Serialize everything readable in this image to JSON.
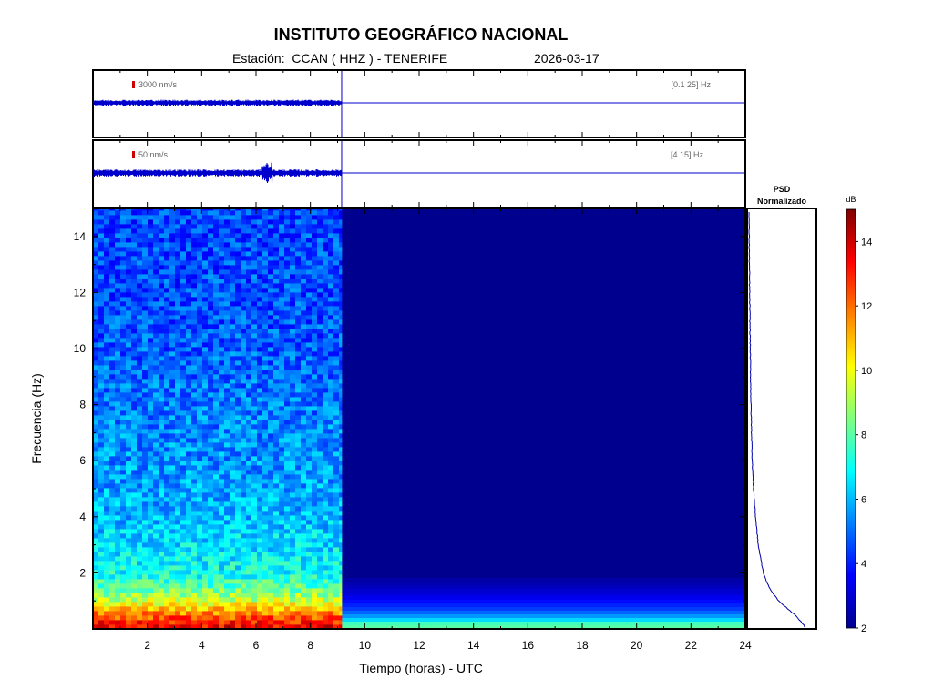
{
  "header": {
    "title": "INSTITUTO GEOGRÁFICO NACIONAL",
    "station_label": "Estación:  CCAN ( HHZ ) - TENERIFE",
    "date": "2026-03-17"
  },
  "traces": [
    {
      "scale_label": "3000 nm/s",
      "band_label": "[0.1 25] Hz",
      "color": "#0000cc",
      "scale_color": "#cc0000"
    },
    {
      "scale_label": "50 nm/s",
      "band_label": "[4 15] Hz",
      "color": "#0000cc",
      "scale_color": "#cc0000"
    }
  ],
  "psd_panel": {
    "title_line1": "PSD",
    "title_line2": "Normalizado",
    "line_color": "#0000aa"
  },
  "colorbar": {
    "unit": "dB",
    "range": [
      2,
      15
    ],
    "ticks": [
      "2",
      "4",
      "6",
      "8",
      "10",
      "12",
      "14"
    ]
  },
  "chart_data": {
    "type": "heatmap",
    "xlabel": "Tiempo (horas) - UTC",
    "ylabel": "Frecuencia  (Hz)",
    "xlim": [
      0,
      24
    ],
    "ylim": [
      0,
      15
    ],
    "x_ticks": [
      "2",
      "4",
      "6",
      "8",
      "10",
      "12",
      "14",
      "16",
      "18",
      "20",
      "22",
      "24"
    ],
    "y_ticks": [
      "2",
      "4",
      "6",
      "8",
      "10",
      "12",
      "14"
    ],
    "data_end_hour": 9.15,
    "recorded_spectrum_db": [
      {
        "freq": 0.1,
        "db": 13.5
      },
      {
        "freq": 0.5,
        "db": 12.0
      },
      {
        "freq": 1.0,
        "db": 9.5
      },
      {
        "freq": 1.5,
        "db": 8.0
      },
      {
        "freq": 2.0,
        "db": 7.0
      },
      {
        "freq": 3.0,
        "db": 6.5
      },
      {
        "freq": 4.0,
        "db": 6.0
      },
      {
        "freq": 6.0,
        "db": 5.5
      },
      {
        "freq": 8.0,
        "db": 5.2
      },
      {
        "freq": 10.0,
        "db": 4.8
      },
      {
        "freq": 12.0,
        "db": 4.6
      },
      {
        "freq": 15.0,
        "db": 4.5
      }
    ],
    "empty_spectrum_db": [
      {
        "freq": 0.1,
        "db": 8.0
      },
      {
        "freq": 0.3,
        "db": 6.0
      },
      {
        "freq": 0.6,
        "db": 4.5
      },
      {
        "freq": 1.0,
        "db": 3.5
      },
      {
        "freq": 1.6,
        "db": 2.5
      },
      {
        "freq": 15.0,
        "db": 2.0
      }
    ],
    "psd_normalized": [
      {
        "freq": 0.1,
        "value": 0.85
      },
      {
        "freq": 0.5,
        "value": 0.7
      },
      {
        "freq": 1.0,
        "value": 0.45
      },
      {
        "freq": 1.5,
        "value": 0.3
      },
      {
        "freq": 2.0,
        "value": 0.22
      },
      {
        "freq": 3.0,
        "value": 0.14
      },
      {
        "freq": 4.0,
        "value": 0.1
      },
      {
        "freq": 5.0,
        "value": 0.07
      },
      {
        "freq": 6.0,
        "value": 0.05
      },
      {
        "freq": 8.0,
        "value": 0.03
      },
      {
        "freq": 10.0,
        "value": 0.02
      },
      {
        "freq": 12.0,
        "value": 0.01
      },
      {
        "freq": 15.0,
        "value": 0.0
      }
    ]
  }
}
